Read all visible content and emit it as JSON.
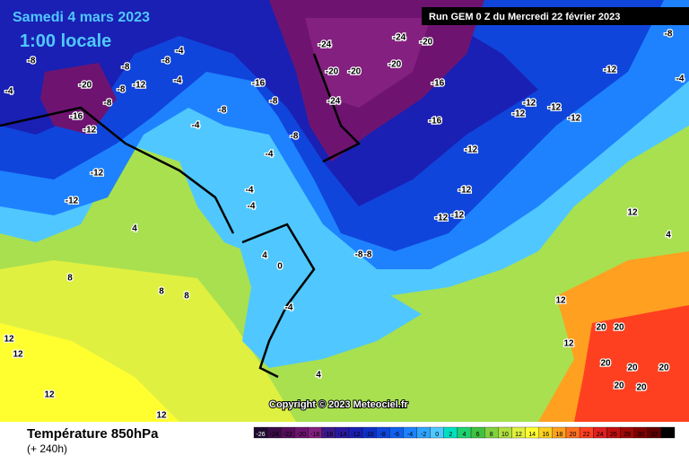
{
  "header": {
    "date": "Samedi 4 mars 2023",
    "time": "1:00 locale",
    "run": "Run GEM 0 Z du Mercredi 22 février 2023"
  },
  "copyright": "Copyright © 2023 Meteociel.fr",
  "footer": {
    "title": "Température 850hPa",
    "lead": "(+ 240h)"
  },
  "legend": {
    "values": [
      -26,
      -24,
      -22,
      -20,
      -18,
      -16,
      -14,
      -12,
      -10,
      -8,
      -6,
      -4,
      -2,
      0,
      2,
      4,
      6,
      8,
      10,
      12,
      14,
      16,
      18,
      20,
      22,
      24,
      26,
      28,
      30,
      32,
      34
    ],
    "colors": [
      "#1e0a2e",
      "#3a0c46",
      "#550e5c",
      "#6e1470",
      "#842080",
      "#3b1a8c",
      "#2a1aa0",
      "#1a20b4",
      "#1030c8",
      "#1045dc",
      "#1060f0",
      "#1e82ff",
      "#30a4ff",
      "#50c8ff",
      "#00e0c0",
      "#20d070",
      "#40c040",
      "#80d040",
      "#b0e040",
      "#e0f040",
      "#ffff30",
      "#ffd020",
      "#ffa020",
      "#ff7020",
      "#ff4020",
      "#e02020",
      "#c01010",
      "#a00808",
      "#800000",
      "#600000",
      "#000000"
    ]
  },
  "map_labels": [
    -20,
    -16,
    -12,
    -12,
    -12,
    -8,
    -4,
    -8,
    -12,
    -8,
    -8,
    -4,
    -8,
    -4,
    -4,
    -8,
    -16,
    -8,
    -8,
    -24,
    -20,
    -24,
    -20,
    -24,
    -20,
    -16,
    -20,
    -16,
    -12,
    -12,
    -12,
    -12,
    -12,
    -12,
    -12,
    -12,
    -12,
    -8,
    -8,
    -4,
    -4,
    -4,
    -4,
    4,
    0,
    4,
    8,
    8,
    8,
    12,
    12,
    12,
    12,
    4,
    12,
    12,
    20,
    20,
    20,
    20,
    20,
    20,
    20,
    -8,
    -4,
    12,
    4
  ]
}
